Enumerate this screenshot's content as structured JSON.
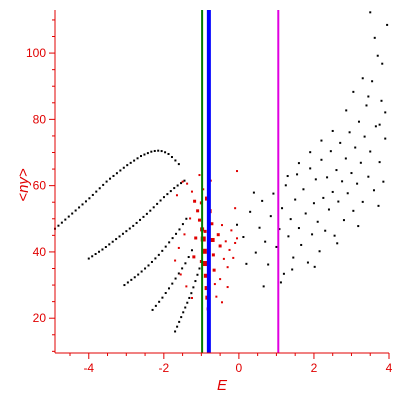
{
  "chart_data": {
    "type": "scatter",
    "title": "",
    "xlabel": "E",
    "ylabel": "<ny>",
    "xlim": [
      -4.9,
      4.0
    ],
    "ylim": [
      9.5,
      113
    ],
    "xticks": [
      -4,
      -2,
      0,
      2,
      4
    ],
    "yticks": [
      20,
      40,
      60,
      80,
      100
    ],
    "grid": false,
    "colors": {
      "axis": "#e00000",
      "black_points": "#000000",
      "red_points": "#e00000",
      "green_line": "#007a00",
      "blue_line": "#0000ff",
      "magenta_line": "#e000e0"
    },
    "vertical_lines": [
      {
        "x": -0.98,
        "color": "#007a00"
      },
      {
        "x": -0.8,
        "color": "#0000ff"
      },
      {
        "x": 1.05,
        "color": "#e000e0"
      }
    ],
    "black_curves": [
      {
        "x": [
          -4.9,
          -4.5,
          -4.0,
          -3.5,
          -3.0,
          -2.6,
          -2.3,
          -2.1,
          -1.9,
          -1.75,
          -1.6
        ],
        "y": [
          47,
          51,
          56,
          61.5,
          66,
          69,
          70.4,
          70.6,
          69.8,
          68.3,
          66.5
        ]
      },
      {
        "x": [
          -4.0,
          -3.6,
          -3.2,
          -2.8,
          -2.4,
          -2.0,
          -1.7,
          -1.45
        ],
        "y": [
          38,
          41,
          44.5,
          48,
          52,
          56.5,
          59.5,
          61.5
        ]
      },
      {
        "x": [
          -3.05,
          -2.7,
          -2.4,
          -2.1,
          -1.85,
          -1.6,
          -1.4
        ],
        "y": [
          30,
          33,
          36,
          39.5,
          43,
          46.5,
          50
        ]
      },
      {
        "x": [
          -2.3,
          -2.05,
          -1.8,
          -1.6,
          -1.4,
          -1.25
        ],
        "y": [
          22.5,
          26,
          30,
          33.5,
          37,
          40.5
        ]
      },
      {
        "x": [
          -1.7,
          -1.55,
          -1.4,
          -1.25,
          -1.15,
          -1.05
        ],
        "y": [
          16,
          20,
          24,
          28,
          31.5,
          35
        ]
      }
    ],
    "black_cloud": {
      "points": [
        [
          -0.05,
          48.2
        ],
        [
          0.12,
          44.5
        ],
        [
          0.3,
          52.1
        ],
        [
          0.45,
          39.8
        ],
        [
          0.55,
          47.3
        ],
        [
          0.62,
          55.4
        ],
        [
          0.7,
          43.1
        ],
        [
          0.78,
          36.2
        ],
        [
          0.85,
          50.8
        ],
        [
          0.92,
          57.6
        ],
        [
          1.0,
          41.5
        ],
        [
          1.08,
          46.9
        ],
        [
          1.15,
          53.2
        ],
        [
          1.2,
          33.4
        ],
        [
          1.25,
          60.1
        ],
        [
          1.32,
          44.7
        ],
        [
          1.38,
          49.9
        ],
        [
          1.45,
          38.3
        ],
        [
          1.5,
          55.8
        ],
        [
          1.55,
          63.4
        ],
        [
          1.6,
          47.2
        ],
        [
          1.66,
          42.1
        ],
        [
          1.72,
          58.9
        ],
        [
          1.78,
          51.6
        ],
        [
          1.84,
          36.8
        ],
        [
          1.9,
          65.2
        ],
        [
          1.95,
          45.3
        ],
        [
          2.0,
          54.7
        ],
        [
          2.05,
          61.9
        ],
        [
          2.1,
          49.1
        ],
        [
          2.15,
          40.2
        ],
        [
          2.2,
          67.8
        ],
        [
          2.25,
          56.3
        ],
        [
          2.3,
          46.4
        ],
        [
          2.35,
          62.5
        ],
        [
          2.4,
          52.8
        ],
        [
          2.45,
          70.4
        ],
        [
          2.5,
          58.1
        ],
        [
          2.55,
          44.9
        ],
        [
          2.6,
          64.7
        ],
        [
          2.65,
          55.2
        ],
        [
          2.7,
          72.9
        ],
        [
          2.75,
          61.3
        ],
        [
          2.8,
          49.6
        ],
        [
          2.85,
          68.2
        ],
        [
          2.9,
          57.7
        ],
        [
          2.95,
          76.1
        ],
        [
          3.0,
          63.8
        ],
        [
          3.05,
          52.4
        ],
        [
          3.1,
          71.5
        ],
        [
          3.15,
          60.6
        ],
        [
          3.2,
          79.3
        ],
        [
          3.25,
          66.9
        ],
        [
          3.3,
          55.1
        ],
        [
          3.35,
          74.8
        ],
        [
          3.4,
          84.2
        ],
        [
          3.45,
          62.7
        ],
        [
          3.5,
          70.3
        ],
        [
          3.55,
          91.5
        ],
        [
          3.6,
          58.6
        ],
        [
          3.65,
          77.9
        ],
        [
          3.7,
          99.2
        ],
        [
          3.75,
          67.1
        ],
        [
          3.8,
          85.6
        ],
        [
          3.85,
          61.2
        ],
        [
          3.9,
          74.2
        ],
        [
          3.95,
          108.5
        ],
        [
          0.4,
          57.9
        ],
        [
          0.66,
          29.6
        ],
        [
          1.12,
          30.8
        ],
        [
          1.42,
          34.7
        ],
        [
          0.2,
          36.4
        ],
        [
          2.02,
          35.5
        ],
        [
          2.62,
          42.6
        ],
        [
          3.18,
          47.8
        ],
        [
          3.72,
          53.9
        ],
        [
          3.5,
          112.3
        ],
        [
          3.62,
          104.6
        ],
        [
          3.82,
          96.8
        ],
        [
          3.3,
          92.4
        ],
        [
          3.05,
          88.3
        ],
        [
          2.86,
          82.7
        ],
        [
          3.45,
          86.9
        ],
        [
          3.9,
          82.1
        ],
        [
          3.75,
          78.4
        ],
        [
          2.5,
          76.5
        ],
        [
          2.2,
          73.6
        ],
        [
          1.9,
          70.1
        ],
        [
          1.6,
          66.8
        ],
        [
          1.3,
          62.9
        ]
      ],
      "color": "#000000"
    },
    "red_points": {
      "points": [
        [
          -1.65,
          57.1,
          2
        ],
        [
          -1.5,
          61.2,
          2
        ],
        [
          -1.38,
          60.6,
          2
        ],
        [
          -1.25,
          58.2,
          2
        ],
        [
          -1.18,
          55.3,
          3
        ],
        [
          -1.1,
          52.4,
          3
        ],
        [
          -1.05,
          49.6,
          3
        ],
        [
          -0.98,
          46.8,
          4
        ],
        [
          -0.95,
          43.9,
          5
        ],
        [
          -0.92,
          40.2,
          5
        ],
        [
          -0.9,
          36.5,
          5
        ],
        [
          -0.88,
          32.8,
          4
        ],
        [
          -0.86,
          29.1,
          4
        ],
        [
          -0.84,
          26.2,
          4
        ],
        [
          -0.82,
          22.8,
          3
        ],
        [
          -0.8,
          19.3,
          3
        ],
        [
          -1.3,
          50.1,
          2
        ],
        [
          -1.45,
          45.3,
          2
        ],
        [
          -1.6,
          41.2,
          2
        ],
        [
          -1.7,
          37.4,
          2
        ],
        [
          -1.55,
          33.2,
          2
        ],
        [
          -1.4,
          29.6,
          2
        ],
        [
          -1.25,
          26.1,
          2
        ],
        [
          -1.2,
          38.5,
          3
        ],
        [
          -1.15,
          44.2,
          3
        ],
        [
          -1.0,
          54.8,
          3
        ],
        [
          -0.95,
          58.9,
          2
        ],
        [
          -0.85,
          56.1,
          4
        ],
        [
          -0.78,
          52.3,
          4
        ],
        [
          -0.72,
          48.5,
          3
        ],
        [
          -0.7,
          43.6,
          4
        ],
        [
          -0.68,
          39.1,
          3
        ],
        [
          -0.66,
          34.5,
          3
        ],
        [
          -0.64,
          30.3,
          2
        ],
        [
          -0.6,
          26.5,
          2
        ],
        [
          -0.55,
          45.2,
          3
        ],
        [
          -0.5,
          41.8,
          3
        ],
        [
          -0.45,
          48.1,
          2
        ],
        [
          -0.4,
          37.9,
          2
        ],
        [
          -0.35,
          43.2,
          2
        ],
        [
          -0.3,
          35.4,
          2
        ],
        [
          -0.25,
          40.6,
          2
        ],
        [
          -0.2,
          46.5,
          2
        ],
        [
          -0.15,
          38.2,
          2
        ],
        [
          -0.1,
          42.7,
          2
        ],
        [
          -0.05,
          44.1,
          2
        ],
        [
          -0.1,
          53.2,
          2
        ],
        [
          -0.05,
          64.4,
          2
        ],
        [
          -0.3,
          29.4,
          2
        ],
        [
          -0.5,
          31.8,
          2
        ],
        [
          -0.45,
          24.8,
          2
        ],
        [
          -0.75,
          61.5,
          2
        ],
        [
          -1.05,
          63.2,
          2
        ],
        [
          -0.9,
          46.2,
          3
        ],
        [
          -0.8,
          42.3,
          3
        ],
        [
          -1.0,
          37.1,
          3
        ]
      ],
      "color": "#e00000"
    }
  }
}
